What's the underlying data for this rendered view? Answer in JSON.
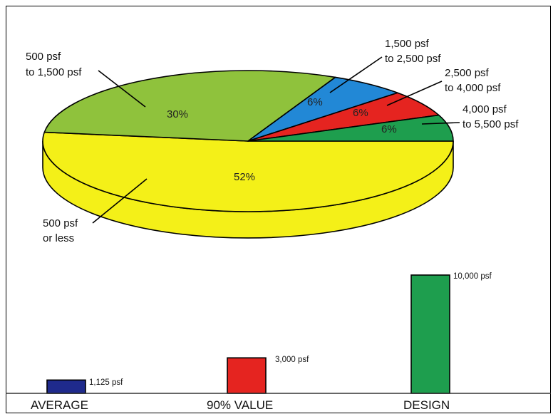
{
  "chart_data": [
    {
      "type": "pie",
      "slices": [
        {
          "label_lines": [
            "500 psf",
            "or less"
          ],
          "value": 52,
          "value_label": "52%",
          "color": "#f4f018"
        },
        {
          "label_lines": [
            "500 psf",
            "to 1,500 psf"
          ],
          "value": 30,
          "value_label": "30%",
          "color": "#8fc23c"
        },
        {
          "label_lines": [
            "1,500 psf",
            "to 2,500 psf"
          ],
          "value": 6,
          "value_label": "6%",
          "color": "#2288d6"
        },
        {
          "label_lines": [
            "2,500 psf",
            "to 4,000 psf"
          ],
          "value": 6,
          "value_label": "6%",
          "color": "#e52420"
        },
        {
          "label_lines": [
            "4,000 psf",
            "to 5,500 psf"
          ],
          "value": 6,
          "value_label": "6%",
          "color": "#1e9e4e"
        }
      ]
    },
    {
      "type": "bar",
      "categories": [
        "AVERAGE",
        "90% VALUE",
        "DESIGN"
      ],
      "values": [
        1125,
        3000,
        10000
      ],
      "value_labels": [
        "1,125 psf",
        "3,000 psf",
        "10,000 psf"
      ],
      "colors": [
        "#1f2a8c",
        "#e52420",
        "#1e9e4e"
      ],
      "ylim": [
        0,
        10800
      ]
    }
  ]
}
